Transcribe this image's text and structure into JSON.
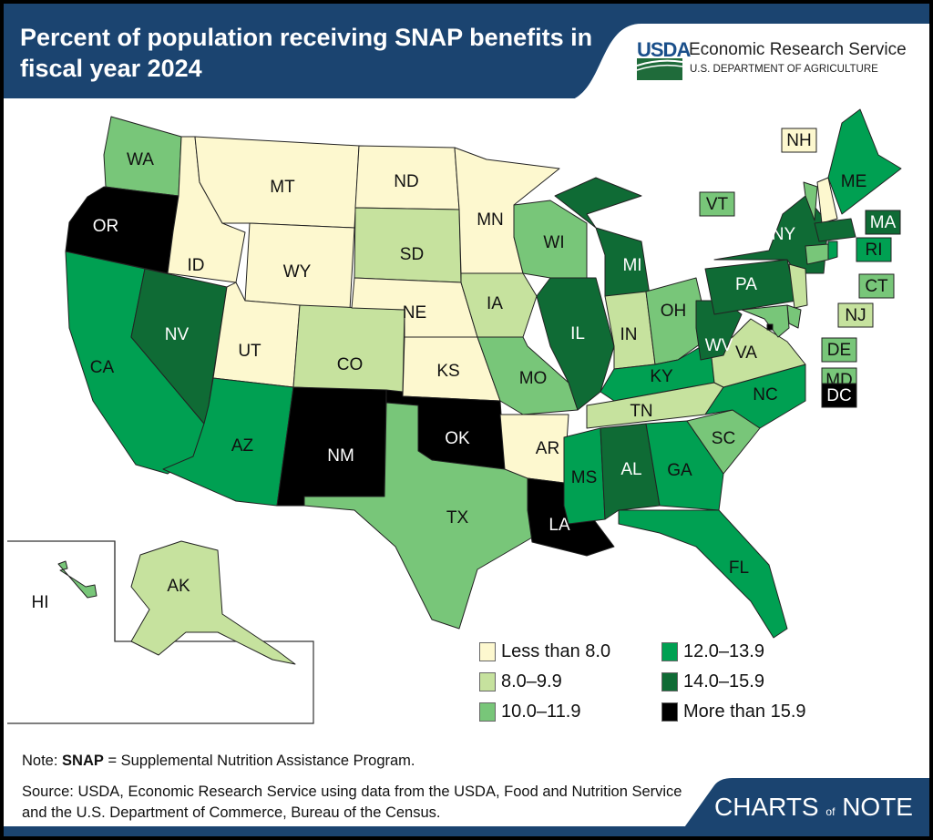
{
  "header": {
    "title": "Percent of population receiving SNAP benefits in fiscal year 2024",
    "logo_text": "USDA",
    "org_name": "Economic Research Service",
    "org_dept": "U.S. DEPARTMENT OF AGRICULTURE"
  },
  "colors": {
    "header_bg": "#1b4470",
    "categories": [
      "#fdf8cf",
      "#c6e29e",
      "#78c679",
      "#00a052",
      "#0f6b35",
      "#000000"
    ]
  },
  "legend": [
    {
      "label": "Less than 8.0",
      "category": 0
    },
    {
      "label": "8.0–9.9",
      "category": 1
    },
    {
      "label": "10.0–11.9",
      "category": 2
    },
    {
      "label": "12.0–13.9",
      "category": 3
    },
    {
      "label": "14.0–15.9",
      "category": 4
    },
    {
      "label": "More than 15.9",
      "category": 5
    }
  ],
  "states": [
    {
      "abbr": "WA",
      "category": 2
    },
    {
      "abbr": "OR",
      "category": 5
    },
    {
      "abbr": "CA",
      "category": 3
    },
    {
      "abbr": "NV",
      "category": 4
    },
    {
      "abbr": "ID",
      "category": 0
    },
    {
      "abbr": "MT",
      "category": 0
    },
    {
      "abbr": "WY",
      "category": 0
    },
    {
      "abbr": "UT",
      "category": 0
    },
    {
      "abbr": "CO",
      "category": 1
    },
    {
      "abbr": "AZ",
      "category": 3
    },
    {
      "abbr": "NM",
      "category": 5
    },
    {
      "abbr": "ND",
      "category": 0
    },
    {
      "abbr": "SD",
      "category": 1
    },
    {
      "abbr": "NE",
      "category": 0
    },
    {
      "abbr": "KS",
      "category": 0
    },
    {
      "abbr": "OK",
      "category": 5
    },
    {
      "abbr": "TX",
      "category": 2
    },
    {
      "abbr": "MN",
      "category": 0
    },
    {
      "abbr": "IA",
      "category": 1
    },
    {
      "abbr": "MO",
      "category": 2
    },
    {
      "abbr": "AR",
      "category": 0
    },
    {
      "abbr": "LA",
      "category": 5
    },
    {
      "abbr": "WI",
      "category": 2
    },
    {
      "abbr": "IL",
      "category": 4
    },
    {
      "abbr": "MI",
      "category": 4
    },
    {
      "abbr": "IN",
      "category": 1
    },
    {
      "abbr": "OH",
      "category": 2
    },
    {
      "abbr": "KY",
      "category": 3
    },
    {
      "abbr": "TN",
      "category": 1
    },
    {
      "abbr": "MS",
      "category": 3
    },
    {
      "abbr": "AL",
      "category": 4
    },
    {
      "abbr": "GA",
      "category": 3
    },
    {
      "abbr": "FL",
      "category": 3
    },
    {
      "abbr": "SC",
      "category": 2
    },
    {
      "abbr": "NC",
      "category": 3
    },
    {
      "abbr": "VA",
      "category": 1
    },
    {
      "abbr": "WV",
      "category": 4
    },
    {
      "abbr": "PA",
      "category": 4
    },
    {
      "abbr": "NY",
      "category": 4
    },
    {
      "abbr": "VT",
      "category": 2
    },
    {
      "abbr": "NH",
      "category": 0
    },
    {
      "abbr": "ME",
      "category": 3
    },
    {
      "abbr": "MA",
      "category": 4
    },
    {
      "abbr": "RI",
      "category": 3
    },
    {
      "abbr": "CT",
      "category": 2
    },
    {
      "abbr": "NJ",
      "category": 1
    },
    {
      "abbr": "DE",
      "category": 2
    },
    {
      "abbr": "MD",
      "category": 2
    },
    {
      "abbr": "DC",
      "category": 5
    },
    {
      "abbr": "HI",
      "category": 2
    },
    {
      "abbr": "AK",
      "category": 1
    }
  ],
  "footer": {
    "note_prefix": "Note: ",
    "note_term": "SNAP",
    "note_text": " = Supplemental Nutrition Assistance Program.",
    "source": "Source: USDA, Economic Research Service using data from the USDA, Food and Nutrition Service and the U.S. Department of Commerce, Bureau of the Census.",
    "brand_a": "CHARTS",
    "brand_of": "of",
    "brand_b": "NOTE"
  }
}
